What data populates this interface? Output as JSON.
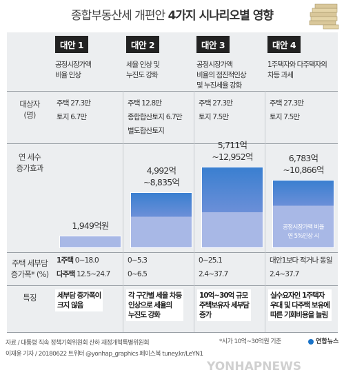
{
  "title_light": "종합부동산세 개편안",
  "title_bold": "4가지 시나리오별 영향",
  "icon": "money-stack-icon",
  "row_labels": {
    "payers": "대상자\n(명)",
    "tax_increase": "연 세수\n증가효과",
    "burden": "주택 세부담\n증가폭* (%)",
    "feature": "특징"
  },
  "columns": [
    {
      "tag": "대안 1",
      "desc": "공정시장가액\n비율 인상",
      "payers": [
        "주택 27.3만",
        "토지 6.7만"
      ],
      "amount": "1,949억원",
      "burden_lines": [
        {
          "bold": "1주택",
          "text": "  0~18.0"
        },
        {
          "bold": "다주택",
          "text": " 12.5~24.7"
        }
      ],
      "feature": "세부담 증가폭이\n크지 않음"
    },
    {
      "tag": "대안 2",
      "desc": "세율 인상 및\n누진도 강화",
      "payers": [
        "주택 12.8만",
        "종합합산토지 6.7만",
        "별도합산토지"
      ],
      "amount": "4,992억\n~8,835억",
      "burden_lines": [
        {
          "bold": "",
          "text": "0~5.3"
        },
        {
          "bold": "",
          "text": "0~6.5"
        }
      ],
      "feature": "각 구간별 세율 차등\n인상으로 세율의\n누진도 강화"
    },
    {
      "tag": "대안 3",
      "desc": "공정시장가액\n비율의 점진적인상\n및 누진세율 강화",
      "payers": [
        "주택 27.3만",
        "토지 7.5만"
      ],
      "amount": "5,711억\n~12,952억",
      "burden_lines": [
        {
          "bold": "",
          "text": "0~25.1"
        },
        {
          "bold": "",
          "text": "2.4~37.7"
        }
      ],
      "feature": "10억~30억 규모\n주택보유자 세부담\n증가"
    },
    {
      "tag": "대안 4",
      "desc": "1주택자와 다주택자의\n차등 과세",
      "payers": [
        "주택 27.3만",
        "토지 7.5만"
      ],
      "amount": "6,783억\n~10,866억",
      "bar_note": "공정시장가액 비율\n연 5%인상 시",
      "burden_lines": [
        {
          "bold": "",
          "text": "대안1보다 적거나 동일"
        },
        {
          "bold": "",
          "text": "2.4~37.7"
        }
      ],
      "feature": "실수요자인 1주택자\n우대 및 다주택 보유에\n따른 기회비용을 늘림"
    }
  ],
  "chart_data": {
    "type": "bar",
    "categories": [
      "대안 1",
      "대안 2",
      "대안 3",
      "대안 4"
    ],
    "series": [
      {
        "values": [
          1949,
          8835,
          12952,
          10866
        ]
      }
    ],
    "ranges": [
      [
        1949,
        1949
      ],
      [
        4992,
        8835
      ],
      [
        5711,
        12952
      ],
      [
        6783,
        10866
      ]
    ],
    "ylabel": "연 세수 증가효과",
    "colors": {
      "light": "#a8b8e6",
      "mid": "#6b8fd8",
      "dark": "#3a7fd0"
    }
  },
  "source": "자료 / 대통령 직속 정책기획위원회 산하 재정개혁특별위원회",
  "footnote": "*시가 10억~30억원 기준",
  "credit": "이재윤 기자 / 20180622 트위터 @yonhap_graphics  페이스북 tuney.kr/LeYN1",
  "brand": "연합뉴스",
  "watermark": "YONHAPNEWS"
}
